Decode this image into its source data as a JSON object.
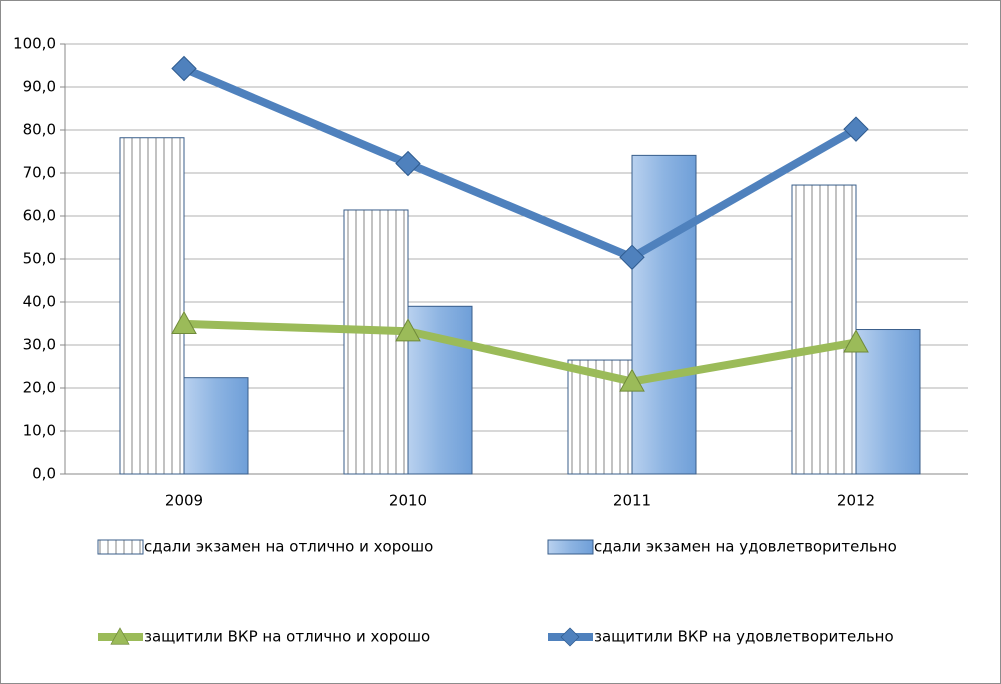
{
  "chart_data": {
    "type": "bar",
    "categories": [
      "2009",
      "2010",
      "2011",
      "2012"
    ],
    "series": [
      {
        "name": "сдали экзамен на отлично и хорошо",
        "type": "bar",
        "color": "#ffffff",
        "hatch": "vertical",
        "values": [
          78.2,
          61.4,
          26.5,
          67.2
        ]
      },
      {
        "name": "сдали экзамен на удовлетворительно",
        "type": "bar",
        "color": "#8db4e2",
        "values": [
          22.4,
          39.0,
          74.1,
          33.6
        ]
      },
      {
        "name": "защитили ВКР на отлично и хорошо",
        "type": "line",
        "color": "#9bbb59",
        "marker": "triangle",
        "values": [
          34.9,
          33.2,
          21.5,
          30.6
        ]
      },
      {
        "name": "защитили ВКР на удовлетворительно",
        "type": "line",
        "color": "#4f81bd",
        "marker": "diamond",
        "values": [
          94.3,
          72.2,
          50.4,
          80.2
        ]
      }
    ],
    "ylim": [
      0,
      100
    ],
    "yticks": [
      {
        "value": 0,
        "label": "0,0"
      },
      {
        "value": 10,
        "label": "10,0"
      },
      {
        "value": 20,
        "label": "20,0"
      },
      {
        "value": 30,
        "label": "30,0"
      },
      {
        "value": 40,
        "label": "40,0"
      },
      {
        "value": 50,
        "label": "50,0"
      },
      {
        "value": 60,
        "label": "60,0"
      },
      {
        "value": 70,
        "label": "70,0"
      },
      {
        "value": 80,
        "label": "80,0"
      },
      {
        "value": 90,
        "label": "90,0"
      },
      {
        "value": 100,
        "label": "100,0"
      }
    ],
    "grid": true,
    "legend": "bottom"
  }
}
